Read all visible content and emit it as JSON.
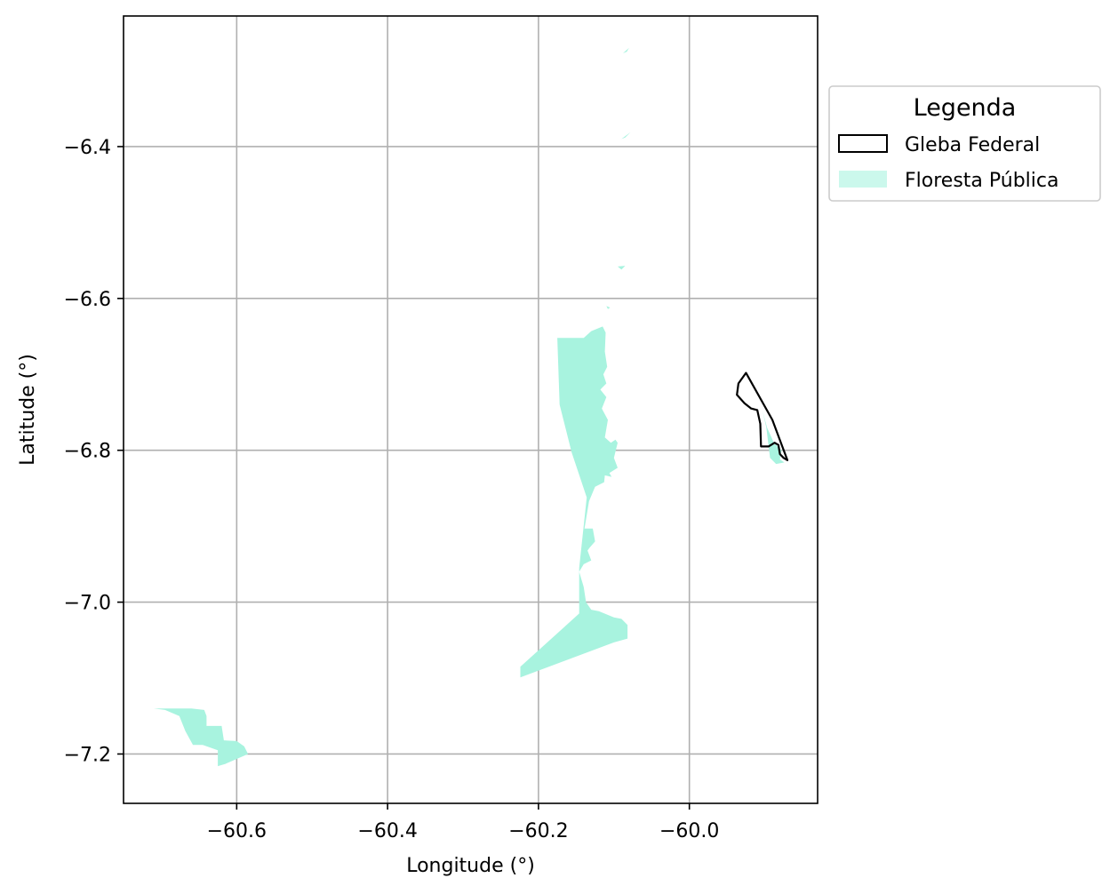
{
  "chart_data": {
    "type": "map",
    "xlabel": "Longitude (°)",
    "ylabel": "Latitude (°)",
    "xlim": [
      -60.75,
      -59.83
    ],
    "ylim": [
      -7.265,
      -6.228
    ],
    "x_ticks": [
      -60.6,
      -60.4,
      -60.2,
      -60.0
    ],
    "x_tick_labels": [
      "−60.6",
      "−60.4",
      "−60.2",
      "−60.0"
    ],
    "y_ticks": [
      -6.4,
      -6.6,
      -6.8,
      -7.0,
      -7.2
    ],
    "y_tick_labels": [
      "−6.4",
      "−6.6",
      "−6.8",
      "−7.0",
      "−7.2"
    ],
    "grid": true,
    "legend": {
      "title": "Legenda",
      "position": "outside-upper-right",
      "entries": [
        {
          "label": "Gleba Federal",
          "style": "outline",
          "color": "#000000"
        },
        {
          "label": "Floresta Pública",
          "style": "fill",
          "color": "#a8f3df"
        }
      ]
    },
    "layers": [
      {
        "name": "Floresta Pública",
        "color": "#a8f3df",
        "polygons": [
          [
            [
              -60.175,
              -6.652
            ],
            [
              -60.14,
              -6.652
            ],
            [
              -60.13,
              -6.643
            ],
            [
              -60.115,
              -6.637
            ],
            [
              -60.111,
              -6.645
            ],
            [
              -60.112,
              -6.67
            ],
            [
              -60.109,
              -6.69
            ],
            [
              -60.114,
              -6.7
            ],
            [
              -60.11,
              -6.712
            ],
            [
              -60.118,
              -6.72
            ],
            [
              -60.11,
              -6.73
            ],
            [
              -60.116,
              -6.745
            ],
            [
              -60.108,
              -6.76
            ],
            [
              -60.112,
              -6.783
            ],
            [
              -60.104,
              -6.79
            ],
            [
              -60.098,
              -6.786
            ],
            [
              -60.095,
              -6.79
            ],
            [
              -60.1,
              -6.81
            ],
            [
              -60.095,
              -6.823
            ],
            [
              -60.106,
              -6.83
            ],
            [
              -60.103,
              -6.835
            ],
            [
              -60.112,
              -6.833
            ],
            [
              -60.113,
              -6.842
            ],
            [
              -60.125,
              -6.848
            ],
            [
              -60.133,
              -6.867
            ],
            [
              -60.139,
              -6.903
            ],
            [
              -60.128,
              -6.903
            ],
            [
              -60.125,
              -6.92
            ],
            [
              -60.132,
              -6.928
            ],
            [
              -60.135,
              -6.932
            ],
            [
              -60.13,
              -6.945
            ],
            [
              -60.14,
              -6.95
            ],
            [
              -60.146,
              -6.96
            ],
            [
              -60.14,
              -6.98
            ],
            [
              -60.137,
              -7.0
            ],
            [
              -60.13,
              -7.01
            ],
            [
              -60.12,
              -7.012
            ],
            [
              -60.11,
              -7.016
            ],
            [
              -60.1,
              -7.02
            ],
            [
              -60.09,
              -7.022
            ],
            [
              -60.082,
              -7.03
            ],
            [
              -60.082,
              -7.048
            ],
            [
              -60.1,
              -7.053
            ],
            [
              -60.224,
              -7.099
            ],
            [
              -60.224,
              -7.085
            ],
            [
              -60.146,
              -7.015
            ],
            [
              -60.146,
              -6.955
            ],
            [
              -60.136,
              -6.862
            ],
            [
              -60.156,
              -6.803
            ],
            [
              -60.172,
              -6.74
            ]
          ],
          [
            [
              -60.71,
              -7.14
            ],
            [
              -60.66,
              -7.14
            ],
            [
              -60.643,
              -7.142
            ],
            [
              -60.64,
              -7.15
            ],
            [
              -60.64,
              -7.163
            ],
            [
              -60.62,
              -7.163
            ],
            [
              -60.617,
              -7.182
            ],
            [
              -60.6,
              -7.183
            ],
            [
              -60.59,
              -7.19
            ],
            [
              -60.585,
              -7.2
            ],
            [
              -60.615,
              -7.213
            ],
            [
              -60.625,
              -7.216
            ],
            [
              -60.625,
              -7.195
            ],
            [
              -60.645,
              -7.188
            ],
            [
              -60.658,
              -7.188
            ],
            [
              -60.668,
              -7.17
            ],
            [
              -60.676,
              -7.15
            ],
            [
              -60.695,
              -7.142
            ]
          ],
          [
            [
              -59.903,
              -6.748
            ],
            [
              -59.897,
              -6.77
            ],
            [
              -59.888,
              -6.79
            ],
            [
              -59.878,
              -6.8
            ],
            [
              -59.88,
              -6.812
            ],
            [
              -59.874,
              -6.816
            ],
            [
              -59.885,
              -6.818
            ],
            [
              -59.893,
              -6.81
            ],
            [
              -59.895,
              -6.794
            ],
            [
              -59.898,
              -6.77
            ]
          ],
          [
            [
              -60.088,
              -6.277
            ],
            [
              -60.08,
              -6.27
            ],
            [
              -60.083,
              -6.275
            ]
          ],
          [
            [
              -60.09,
              -6.39
            ],
            [
              -60.078,
              -6.381
            ],
            [
              -60.085,
              -6.388
            ]
          ],
          [
            [
              -60.095,
              -6.558
            ],
            [
              -60.09,
              -6.562
            ],
            [
              -60.085,
              -6.557
            ]
          ],
          [
            [
              -60.105,
              -6.612
            ],
            [
              -60.11,
              -6.61
            ],
            [
              -60.108,
              -6.614
            ]
          ]
        ]
      },
      {
        "name": "Gleba Federal",
        "color": "#000000",
        "polygons": [
          [
            [
              -59.925,
              -6.698
            ],
            [
              -59.935,
              -6.712
            ],
            [
              -59.937,
              -6.727
            ],
            [
              -59.927,
              -6.738
            ],
            [
              -59.918,
              -6.745
            ],
            [
              -59.91,
              -6.747
            ],
            [
              -59.906,
              -6.765
            ],
            [
              -59.905,
              -6.795
            ],
            [
              -59.895,
              -6.795
            ],
            [
              -59.887,
              -6.79
            ],
            [
              -59.882,
              -6.793
            ],
            [
              -59.88,
              -6.805
            ],
            [
              -59.875,
              -6.81
            ],
            [
              -59.87,
              -6.813
            ],
            [
              -59.89,
              -6.76
            ]
          ]
        ]
      }
    ]
  }
}
